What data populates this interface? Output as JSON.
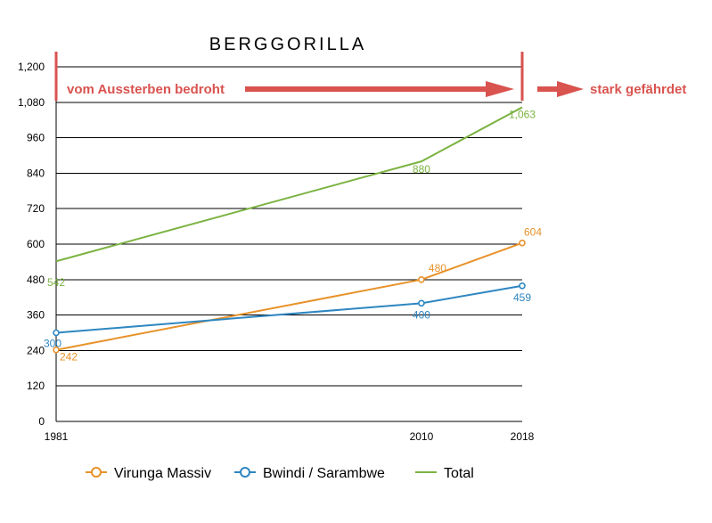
{
  "chart_data": {
    "type": "line",
    "title": "BERGGORILLA",
    "x": [
      "1981",
      "2010",
      "2018"
    ],
    "x_numeric": [
      1981,
      2010,
      2018
    ],
    "ylim": [
      0,
      1200
    ],
    "y_ticks": [
      0,
      120,
      240,
      360,
      480,
      600,
      720,
      840,
      960,
      1080,
      1200
    ],
    "y_tick_labels": [
      "0",
      "120",
      "240",
      "360",
      "480",
      "600",
      "720",
      "840",
      "960",
      "1,080",
      "1,200"
    ],
    "grid": true,
    "legend_position": "bottom",
    "series": [
      {
        "name": "Virunga Massiv",
        "values": [
          242,
          480,
          604
        ],
        "labels": [
          "242",
          "480",
          "604"
        ],
        "color": "#e8922a",
        "markers": true
      },
      {
        "name": "Bwindi / Sarambwe",
        "values": [
          300,
          400,
          459
        ],
        "labels": [
          "300",
          "400",
          "459"
        ],
        "color": "#2e86c1",
        "markers": true
      },
      {
        "name": "Total",
        "values": [
          542,
          880,
          1063
        ],
        "labels": [
          "542",
          "880",
          "1,063"
        ],
        "color": "#7cb342",
        "markers": false
      }
    ],
    "annotations": {
      "period_label": "vom Aussterben bedroht",
      "status_label": "stark gefährdet",
      "color": "#d9534f"
    }
  }
}
